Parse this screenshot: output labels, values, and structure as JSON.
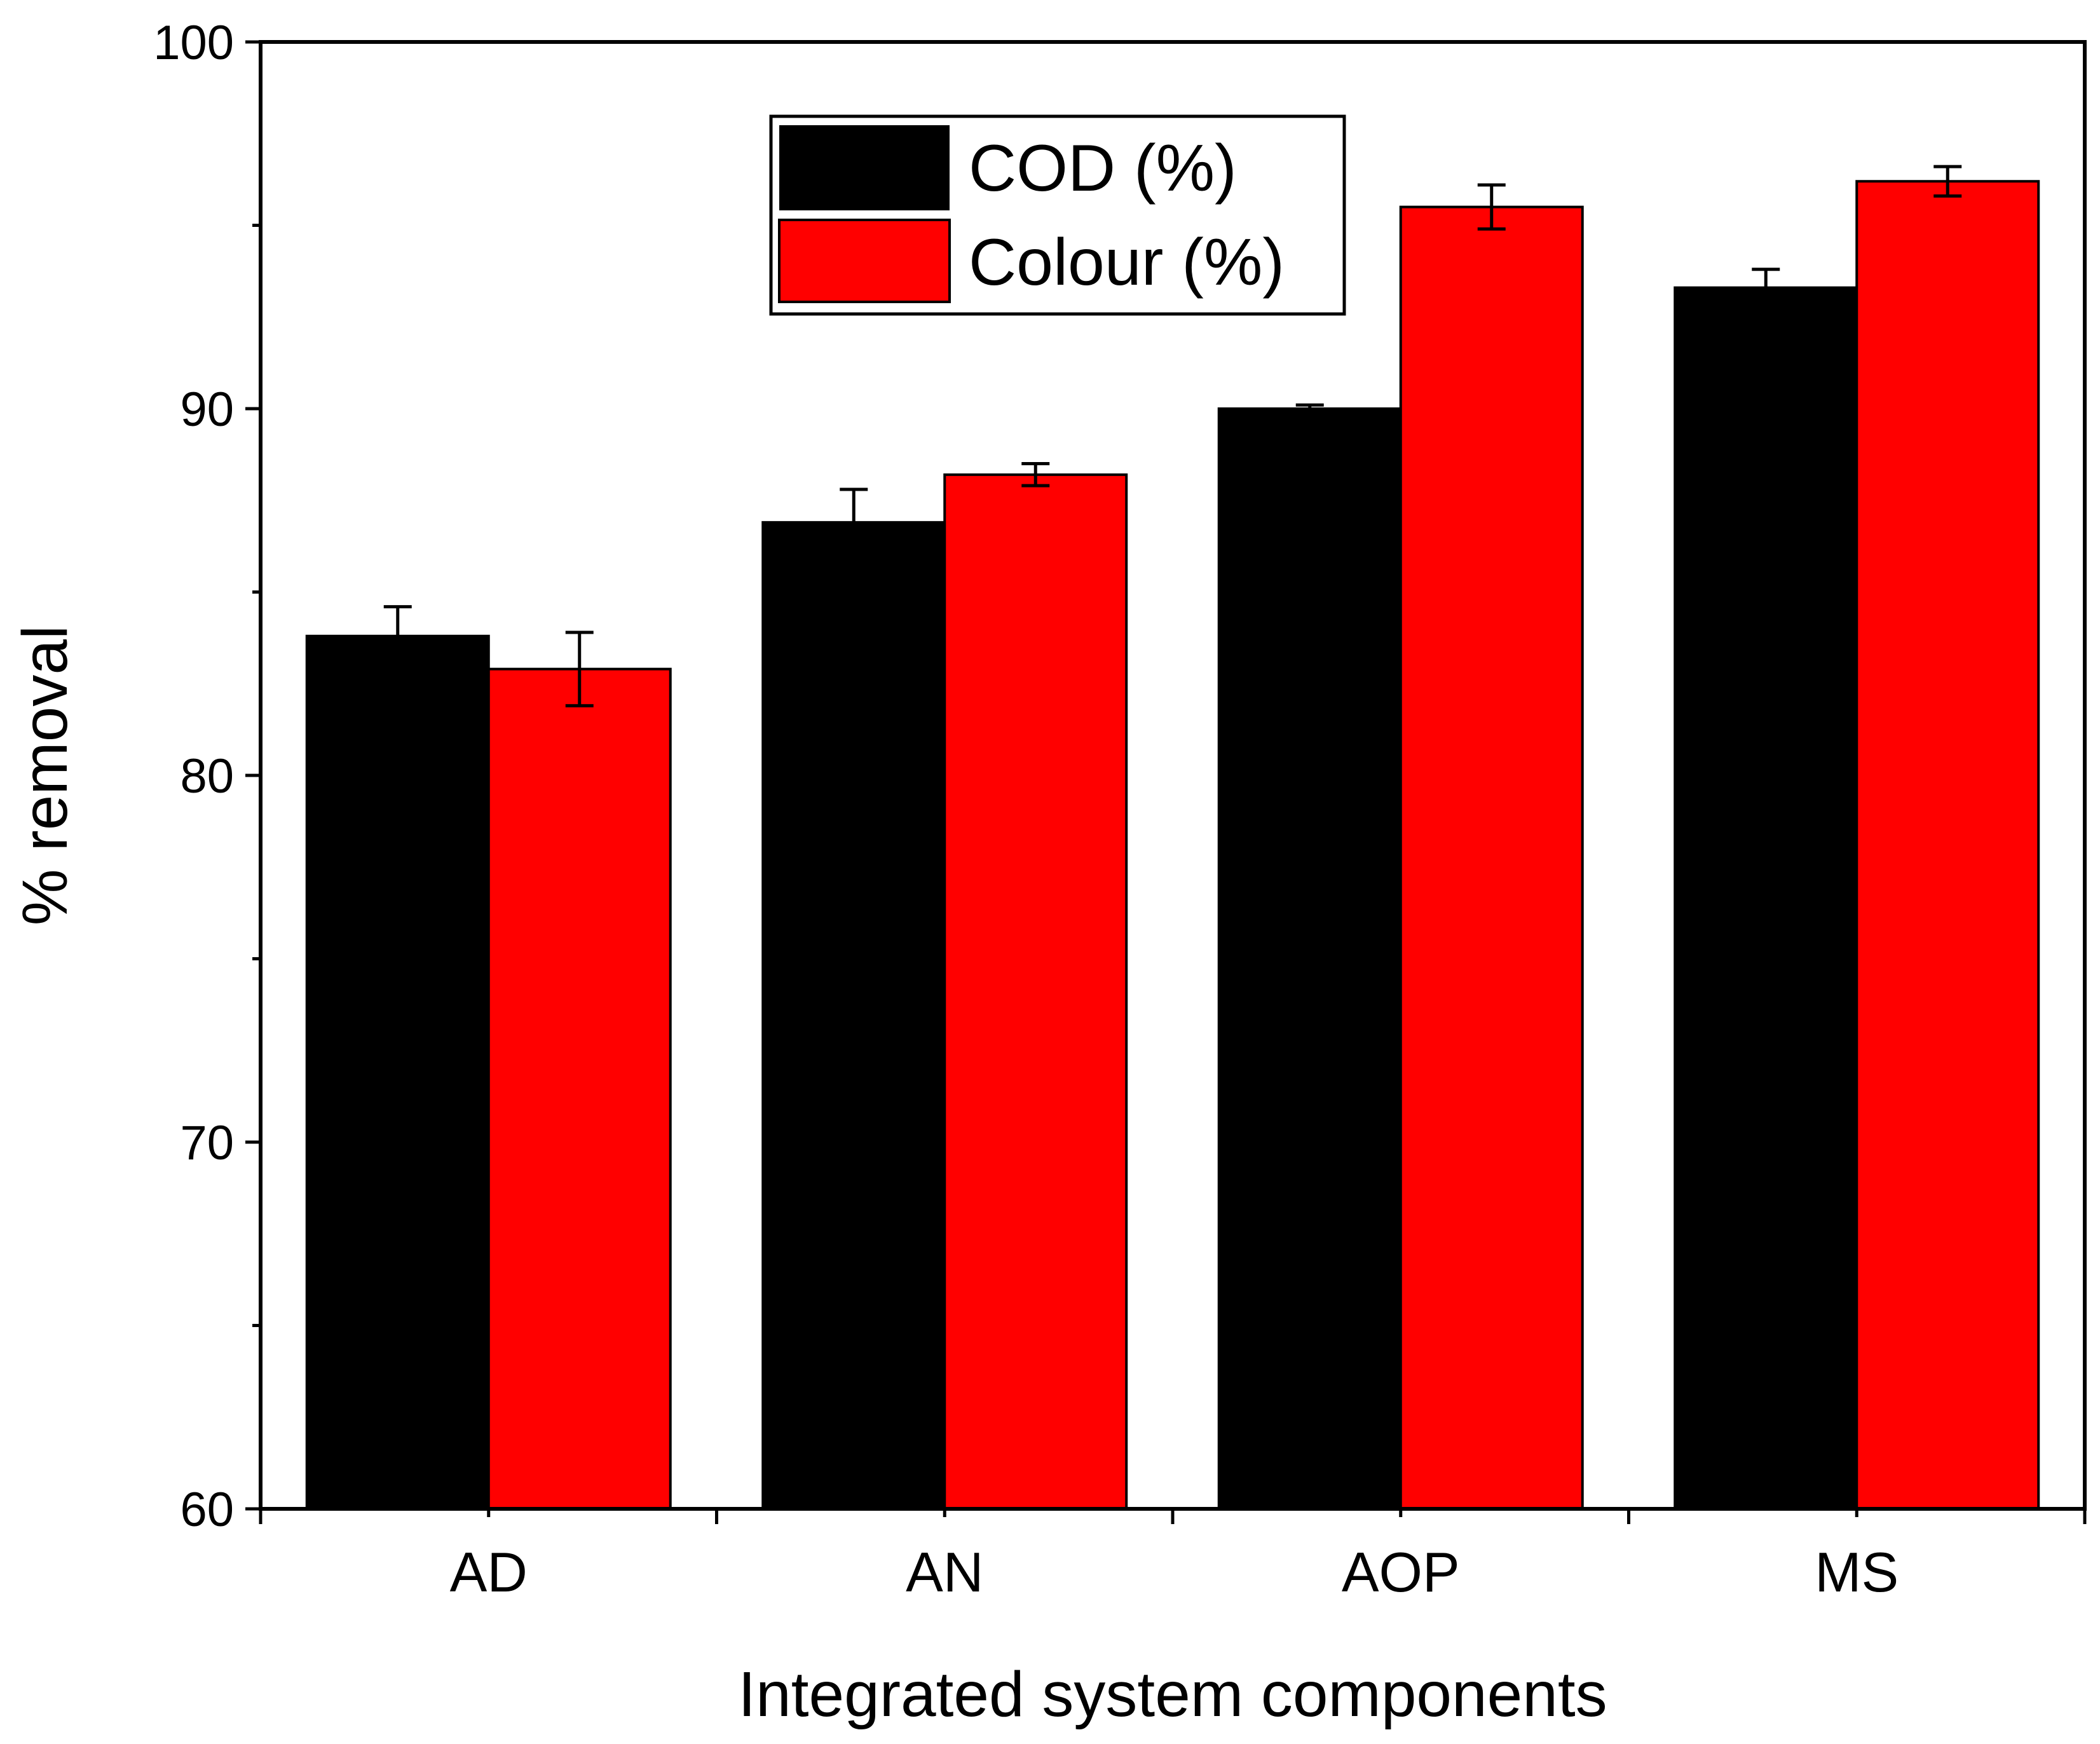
{
  "chart_data": {
    "type": "bar",
    "title": "",
    "xlabel": "Integrated system components",
    "ylabel": "% removal",
    "categories": [
      "AD",
      "AN",
      "AOP",
      "MS"
    ],
    "ylim": [
      60,
      100
    ],
    "yticks": [
      60,
      70,
      80,
      90,
      100
    ],
    "ytick_labels": [
      "60",
      "70",
      "80",
      "90",
      "100"
    ],
    "grid": false,
    "legend_position": "top-center",
    "series": [
      {
        "name": "COD (%)",
        "color": "#000000",
        "values": [
          83.8,
          86.9,
          90.0,
          93.3
        ],
        "errors": [
          0.8,
          0.9,
          0.1,
          0.5
        ]
      },
      {
        "name": "Colour (%)",
        "color": "#ff0000",
        "values": [
          82.9,
          88.2,
          95.5,
          96.2
        ],
        "errors": [
          1.0,
          0.3,
          0.6,
          0.4
        ]
      }
    ]
  }
}
